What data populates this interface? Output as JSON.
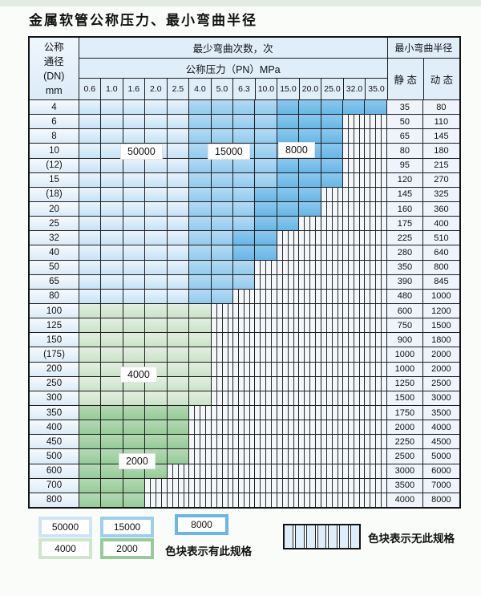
{
  "title": "金属软管公称压力、最小弯曲半径",
  "table": {
    "headers": {
      "dn": "公称\n通径\n(DN)\nmm",
      "bend_times": "最少弯曲次数，次",
      "pressure": "公称压力（PN）MPa",
      "bend_radius": "最小弯曲半径",
      "static": "静 态",
      "dynamic": "动 态",
      "pressures": [
        "0.6",
        "1.0",
        "1.6",
        "2.0",
        "2.5",
        "4.0",
        "5.0",
        "6.3",
        "10.0",
        "15.0",
        "20.0",
        "25.0",
        "32.0",
        "35.0"
      ]
    },
    "cell_codes": {
      "L": "50000次区域",
      "M": "15000次区域",
      "D": "8000次区域",
      "G": "4000次区域",
      "E": "2000次区域",
      "X": "无此规格"
    },
    "rows": [
      {
        "dn": "4",
        "cells": "LLLLLMMMMDDDDD",
        "static": "35",
        "dynamic": "80"
      },
      {
        "dn": "6",
        "cells": "LLLLLMMMMDDDXX",
        "static": "50",
        "dynamic": "110"
      },
      {
        "dn": "8",
        "cells": "LLLLLMMMMDDDXX",
        "static": "65",
        "dynamic": "145"
      },
      {
        "dn": "10",
        "cells": "LLLLLMMMMDDDXX",
        "static": "80",
        "dynamic": "180"
      },
      {
        "dn": "(12)",
        "cells": "LLLLLMMMMDDDXX",
        "static": "95",
        "dynamic": "215"
      },
      {
        "dn": "15",
        "cells": "LLLLLMMMMDDDXX",
        "static": "120",
        "dynamic": "270"
      },
      {
        "dn": "(18)",
        "cells": "LLLLLMMMDDDXXX",
        "static": "145",
        "dynamic": "325"
      },
      {
        "dn": "20",
        "cells": "LLLLLMMMDDDXXX",
        "static": "160",
        "dynamic": "360"
      },
      {
        "dn": "25",
        "cells": "LLLLLMMMDDXXXX",
        "static": "175",
        "dynamic": "400"
      },
      {
        "dn": "32",
        "cells": "LLLLLMMDDXXXXX",
        "static": "225",
        "dynamic": "510"
      },
      {
        "dn": "40",
        "cells": "LLLLLMMDDXXXXX",
        "static": "280",
        "dynamic": "640"
      },
      {
        "dn": "50",
        "cells": "LLLLLMMMXXXXXX",
        "static": "350",
        "dynamic": "800"
      },
      {
        "dn": "65",
        "cells": "LLLLLMMMXXXXXX",
        "static": "390",
        "dynamic": "845"
      },
      {
        "dn": "80",
        "cells": "LLLLLMMXXXXXXX",
        "static": "480",
        "dynamic": "1000"
      },
      {
        "dn": "100",
        "cells": "GGGGGGXXXXXXXX",
        "static": "600",
        "dynamic": "1200"
      },
      {
        "dn": "125",
        "cells": "GGGGGGXXXXXXXX",
        "static": "750",
        "dynamic": "1500"
      },
      {
        "dn": "150",
        "cells": "GGGGGGXXXXXXXX",
        "static": "900",
        "dynamic": "1800"
      },
      {
        "dn": "(175)",
        "cells": "GGGGGGXXXXXXXX",
        "static": "1000",
        "dynamic": "2000"
      },
      {
        "dn": "200",
        "cells": "GGGGGGXXXXXXXX",
        "static": "1000",
        "dynamic": "2000"
      },
      {
        "dn": "250",
        "cells": "GGGGGGXXXXXXXX",
        "static": "1250",
        "dynamic": "2500"
      },
      {
        "dn": "300",
        "cells": "GGGGGGXXXXXXXX",
        "static": "1500",
        "dynamic": "3000"
      },
      {
        "dn": "350",
        "cells": "EEEEEXXXXXXXXX",
        "static": "1750",
        "dynamic": "3500"
      },
      {
        "dn": "400",
        "cells": "EEEEEXXXXXXXXX",
        "static": "2000",
        "dynamic": "4000"
      },
      {
        "dn": "450",
        "cells": "EEEEEXXXXXXXXX",
        "static": "2250",
        "dynamic": "4500"
      },
      {
        "dn": "500",
        "cells": "EEEEEXXXXXXXXX",
        "static": "2500",
        "dynamic": "5000"
      },
      {
        "dn": "600",
        "cells": "EEEEXXXXXXXXXX",
        "static": "3000",
        "dynamic": "6000"
      },
      {
        "dn": "700",
        "cells": "EEEXXXXXXXXXXX",
        "static": "3500",
        "dynamic": "7000"
      },
      {
        "dn": "800",
        "cells": "EEEXXXXXXXXXXX",
        "static": "4000",
        "dynamic": "8000"
      }
    ]
  },
  "overlays": [
    {
      "label": "50000",
      "pos": "ov-50000"
    },
    {
      "label": "15000",
      "pos": "ov-15000"
    },
    {
      "label": "8000",
      "pos": "ov-8000"
    },
    {
      "label": "4000",
      "pos": "ov-4000"
    },
    {
      "label": "2000",
      "pos": "ov-2000"
    }
  ],
  "legend": {
    "swatches": [
      {
        "label": "50000",
        "type": "blue-light"
      },
      {
        "label": "15000",
        "type": "blue-mid"
      },
      {
        "label": "8000",
        "type": "blue-dark"
      },
      {
        "label": "4000",
        "type": "green-light"
      },
      {
        "label": "2000",
        "type": "green-mid"
      }
    ],
    "has_spec_note": "色块表示有此规格",
    "no_spec_note": "色块表示无此规格"
  },
  "colors": {
    "blue_50000": "#cde4f6",
    "blue_15000": "#9bcfee",
    "blue_8000": "#6ab7e6",
    "green_4000": "#d0e5cd",
    "green_2000": "#97cb9a",
    "no_spec_bg": "#f3f7fa"
  }
}
